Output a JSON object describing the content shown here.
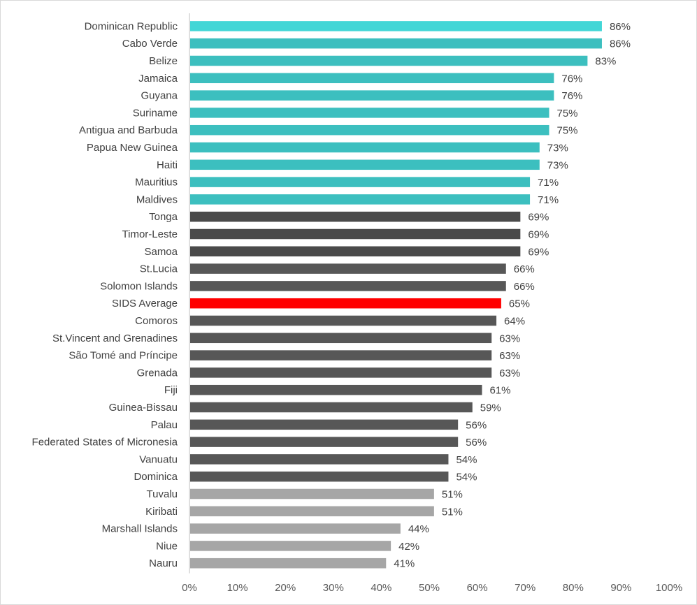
{
  "chart_data": {
    "type": "bar",
    "orientation": "horizontal",
    "categories": [
      "Dominican Republic",
      "Cabo Verde",
      "Belize",
      "Jamaica",
      "Guyana",
      "Suriname",
      "Antigua and Barbuda",
      "Papua New Guinea",
      "Haiti",
      "Mauritius",
      "Maldives",
      "Tonga",
      "Timor-Leste",
      "Samoa",
      "St.Lucia",
      "Solomon Islands",
      "SIDS Average",
      "Comoros",
      "St.Vincent and Grenadines",
      "São Tomé and Príncipe",
      "Grenada",
      "Fiji",
      "Guinea-Bissau",
      "Palau",
      "Federated States of Micronesia",
      "Vanuatu",
      "Dominica",
      "Tuvalu",
      "Kiribati",
      "Marshall Islands",
      "Niue",
      "Nauru"
    ],
    "values": [
      0.86,
      0.86,
      0.83,
      0.76,
      0.76,
      0.75,
      0.75,
      0.73,
      0.73,
      0.71,
      0.71,
      0.69,
      0.69,
      0.69,
      0.66,
      0.66,
      0.65,
      0.64,
      0.63,
      0.63,
      0.63,
      0.61,
      0.59,
      0.56,
      0.56,
      0.54,
      0.54,
      0.51,
      0.51,
      0.44,
      0.42,
      0.41
    ],
    "value_labels": [
      "86%",
      "86%",
      "83%",
      "76%",
      "76%",
      "75%",
      "75%",
      "73%",
      "73%",
      "71%",
      "71%",
      "69%",
      "69%",
      "69%",
      "66%",
      "66%",
      "65%",
      "64%",
      "63%",
      "63%",
      "63%",
      "61%",
      "59%",
      "56%",
      "56%",
      "54%",
      "54%",
      "51%",
      "51%",
      "44%",
      "42%",
      "41%"
    ],
    "colors": [
      "#42d6d6",
      "#3cbfbf",
      "#3cbfbf",
      "#3cbfbf",
      "#3cbfbf",
      "#3cbfbf",
      "#3cbfbf",
      "#3cbfbf",
      "#3cbfbf",
      "#3cbfbf",
      "#3cbfbf",
      "#4a4a4a",
      "#4a4a4a",
      "#4a4a4a",
      "#575757",
      "#575757",
      "#ff0000",
      "#575757",
      "#575757",
      "#575757",
      "#575757",
      "#575757",
      "#575757",
      "#575757",
      "#575757",
      "#575757",
      "#575757",
      "#a6a6a6",
      "#a6a6a6",
      "#a6a6a6",
      "#a6a6a6",
      "#a6a6a6"
    ],
    "xlim": [
      0,
      1
    ],
    "x_ticks": [
      0,
      0.1,
      0.2,
      0.3,
      0.4,
      0.5,
      0.6,
      0.7,
      0.8,
      0.9,
      1.0
    ],
    "x_tick_labels": [
      "0%",
      "10%",
      "20%",
      "30%",
      "40%",
      "50%",
      "60%",
      "70%",
      "80%",
      "90%",
      "100%"
    ],
    "axis_color": "#bfbfbf",
    "grid": false,
    "title": "",
    "xlabel": "",
    "ylabel": ""
  }
}
